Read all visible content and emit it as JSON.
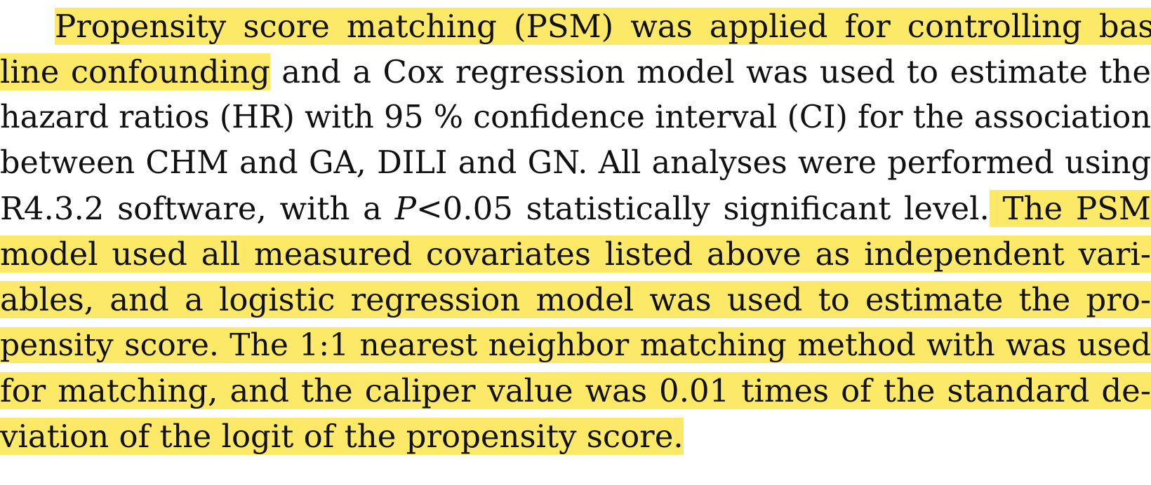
{
  "paragraph": {
    "highlight_color": "#fde968",
    "lines": [
      {
        "segments": [
          {
            "text": "Propensity score matching (PSM) was applied for controlling base-",
            "hl": true
          }
        ]
      },
      {
        "segments": [
          {
            "text": "line confounding",
            "hl": true
          },
          {
            "text": " and a Cox regression model was used to estimate the",
            "hl": false
          }
        ]
      },
      {
        "segments": [
          {
            "text": "hazard ratios (HR) with 95 % confidence interval (CI) for the association",
            "hl": false
          }
        ]
      },
      {
        "segments": [
          {
            "text": "between CHM and GA, DILI and GN. All analyses were performed using",
            "hl": false
          }
        ]
      },
      {
        "segments": [
          {
            "text": "R4.3.2 software, with a ",
            "hl": false
          },
          {
            "text": "P",
            "hl": false,
            "italic": true
          },
          {
            "text": "<0.05 statistically significant level.",
            "hl": false
          },
          {
            "text": " The PSM",
            "hl": true
          }
        ]
      },
      {
        "segments": [
          {
            "text": "model used all measured covariates listed above as independent vari-",
            "hl": true
          }
        ]
      },
      {
        "segments": [
          {
            "text": "ables, and a logistic regression model was used to estimate the pro-",
            "hl": true
          }
        ]
      },
      {
        "segments": [
          {
            "text": "pensity score. The 1:1 nearest neighbor matching method with was used",
            "hl": true
          }
        ]
      },
      {
        "segments": [
          {
            "text": "for matching, and the caliper value was 0.01 times of the standard de-",
            "hl": true
          }
        ]
      },
      {
        "segments": [
          {
            "text": "viation of the logit of the propensity score.",
            "hl": true
          }
        ]
      }
    ]
  }
}
